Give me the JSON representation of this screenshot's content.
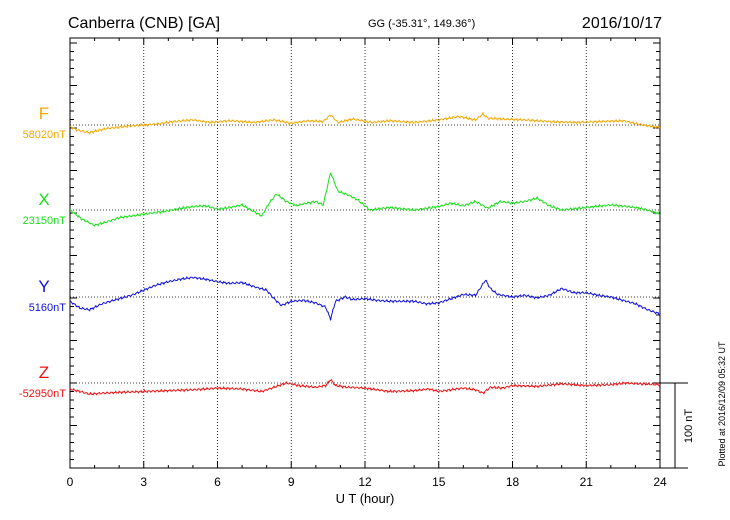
{
  "header": {
    "station": "Canberra (CNB)  [GA]",
    "coords": "GG (-35.31°, 149.36°)",
    "date": "2016/10/17"
  },
  "footer": {
    "xlabel": "U T (hour)",
    "plotted": "Plotted at 2016/12/09 05:32 UT",
    "scale_label": "100 nT"
  },
  "chart_data": {
    "type": "line",
    "xlim": [
      0,
      24
    ],
    "xticks": [
      0,
      3,
      6,
      9,
      12,
      15,
      18,
      21,
      24
    ],
    "grid": true,
    "scale_bar_nT": 100,
    "colors": {
      "F": "#f5a800",
      "X": "#18e018",
      "Y": "#1010dd",
      "Z": "#ee1111"
    },
    "series": [
      {
        "name": "F",
        "baseline_label": "58020nT",
        "baseline_nT": 58020,
        "x": [
          0,
          0.3,
          0.8,
          1.5,
          2.5,
          3.5,
          4.2,
          5.0,
          5.7,
          6.5,
          7.5,
          8.3,
          9.0,
          9.7,
          10.3,
          10.6,
          10.9,
          11.5,
          12.3,
          13.0,
          14.0,
          15.0,
          15.8,
          16.5,
          16.8,
          17.0,
          17.6,
          18.5,
          19.5,
          20.5,
          21.5,
          22.5,
          23.3,
          24
        ],
        "values": [
          58018,
          58014,
          58011,
          58016,
          58019,
          58021,
          58024,
          58026,
          58023,
          58025,
          58023,
          58026,
          58022,
          58025,
          58024,
          58032,
          58023,
          58027,
          58023,
          58025,
          58023,
          58026,
          58030,
          58026,
          58033,
          58028,
          58027,
          58026,
          58024,
          58023,
          58024,
          58025,
          58020,
          58017
        ]
      },
      {
        "name": "X",
        "baseline_label": "23150nT",
        "baseline_nT": 23150,
        "x": [
          0,
          0.5,
          1.0,
          1.5,
          2.0,
          2.5,
          3.0,
          3.5,
          4.0,
          4.5,
          5.0,
          5.5,
          6.0,
          6.5,
          7.0,
          7.8,
          8.1,
          8.4,
          8.8,
          9.2,
          9.6,
          10.0,
          10.3,
          10.6,
          10.9,
          11.3,
          11.7,
          12.2,
          13.0,
          14.0,
          15.0,
          15.5,
          16.0,
          16.5,
          17.0,
          17.5,
          18.0,
          18.5,
          19.0,
          19.5,
          20.0,
          21.0,
          22.0,
          23.0,
          23.5,
          24
        ],
        "values": [
          23150,
          23139,
          23132,
          23136,
          23141,
          23143,
          23145,
          23147,
          23149,
          23152,
          23154,
          23155,
          23151,
          23153,
          23156,
          23143,
          23158,
          23169,
          23160,
          23155,
          23158,
          23160,
          23156,
          23194,
          23172,
          23168,
          23162,
          23150,
          23153,
          23150,
          23154,
          23158,
          23155,
          23160,
          23152,
          23160,
          23158,
          23160,
          23164,
          23155,
          23150,
          23153,
          23156,
          23153,
          23150,
          23145
        ]
      },
      {
        "name": "Y",
        "baseline_label": "5160nT",
        "baseline_nT": 5160,
        "x": [
          0,
          0.4,
          0.8,
          1.3,
          2.0,
          2.5,
          3.0,
          3.5,
          4.0,
          4.5,
          5.0,
          5.5,
          6.0,
          6.5,
          7.0,
          7.5,
          8.0,
          8.3,
          8.6,
          9.0,
          9.5,
          10.0,
          10.4,
          10.6,
          10.8,
          11.2,
          11.5,
          12.0,
          12.5,
          13.0,
          14.0,
          14.5,
          15.0,
          15.5,
          16.0,
          16.5,
          16.9,
          17.1,
          17.4,
          18.0,
          18.5,
          19.0,
          19.5,
          20.0,
          20.5,
          21.0,
          21.5,
          22.0,
          22.5,
          23.0,
          23.5,
          24
        ],
        "values": [
          5155,
          5147,
          5145,
          5152,
          5158,
          5162,
          5168,
          5174,
          5178,
          5181,
          5183,
          5181,
          5178,
          5176,
          5177,
          5172,
          5168,
          5158,
          5150,
          5155,
          5156,
          5153,
          5148,
          5134,
          5155,
          5160,
          5157,
          5158,
          5156,
          5155,
          5155,
          5152,
          5153,
          5158,
          5163,
          5162,
          5180,
          5170,
          5163,
          5160,
          5162,
          5159,
          5162,
          5170,
          5165,
          5165,
          5162,
          5160,
          5156,
          5152,
          5145,
          5140
        ]
      },
      {
        "name": "Z",
        "baseline_label": "-52950nT",
        "baseline_nT": -52950,
        "x": [
          0,
          0.4,
          0.8,
          1.3,
          2.0,
          3.0,
          4.0,
          5.0,
          6.0,
          7.0,
          7.8,
          8.3,
          8.8,
          9.3,
          10.0,
          10.4,
          10.6,
          10.8,
          11.3,
          12.0,
          13.0,
          14.0,
          14.6,
          15.0,
          15.5,
          16.0,
          16.5,
          16.8,
          17.1,
          17.6,
          18.0,
          19.0,
          20.0,
          21.0,
          22.0,
          22.6,
          23.2,
          24
        ],
        "values": [
          -52957,
          -52960,
          -52963,
          -52962,
          -52961,
          -52960,
          -52959,
          -52958,
          -52956,
          -52957,
          -52960,
          -52955,
          -52950,
          -52953,
          -52955,
          -52953,
          -52946,
          -52953,
          -52955,
          -52956,
          -52960,
          -52959,
          -52957,
          -52960,
          -52958,
          -52956,
          -52958,
          -52962,
          -52955,
          -52956,
          -52953,
          -52954,
          -52951,
          -52953,
          -52952,
          -52950,
          -52951,
          -52952
        ]
      }
    ]
  }
}
